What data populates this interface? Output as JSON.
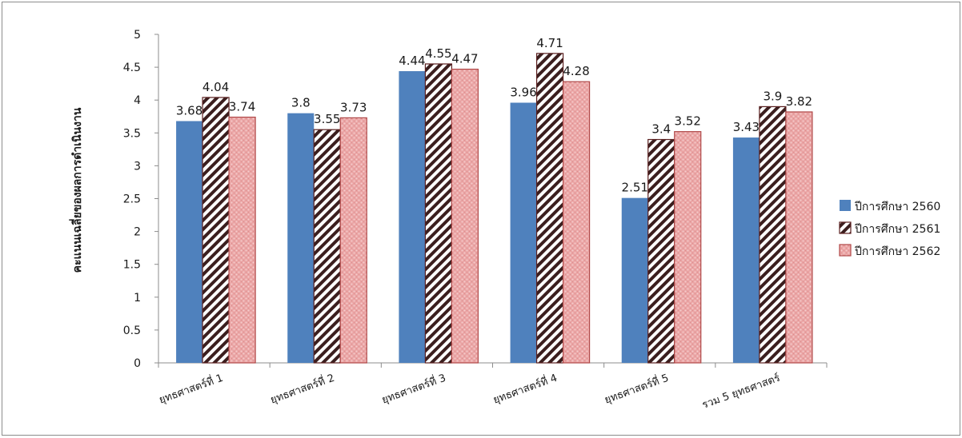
{
  "chart_data": {
    "type": "bar",
    "title": "",
    "xlabel": "",
    "ylabel": "คะแนนเฉลี่ยของผลการดำเนินงาน",
    "ylim": [
      0,
      5
    ],
    "yticks": [
      "0",
      "0.5",
      "1",
      "1.5",
      "2",
      "2.5",
      "3",
      "3.5",
      "4",
      "4.5",
      "5"
    ],
    "categories": [
      "ยุทธศาสตร์ที่ 1",
      "ยุทธศาสตร์ที่ 2",
      "ยุทธศาสตร์ที่ 3",
      "ยุทธศาสตร์ที่ 4",
      "ยุทธศาสตร์ที่ 5",
      "รวม 5 ยุทธศาสตร์"
    ],
    "series": [
      {
        "name": "ปีการศึกษา 2560",
        "values": [
          3.68,
          3.8,
          4.44,
          3.96,
          2.51,
          3.43
        ],
        "labels": [
          "3.68",
          "3.8",
          "4.44",
          "3.96",
          "2.51",
          "3.43"
        ],
        "color": "#4f81bd",
        "fill": "solid"
      },
      {
        "name": "ปีการศึกษา 2561",
        "values": [
          4.04,
          3.55,
          4.55,
          4.71,
          3.4,
          3.9
        ],
        "labels": [
          "4.04",
          "3.55",
          "4.55",
          "4.71",
          "3.4",
          "3.9"
        ],
        "color": "#3b1e1e",
        "fill": "diagonal-stripes"
      },
      {
        "name": "ปีการศึกษา 2562",
        "values": [
          3.74,
          3.73,
          4.47,
          4.28,
          3.52,
          3.82
        ],
        "labels": [
          "3.74",
          "3.73",
          "4.47",
          "4.28",
          "3.52",
          "3.82"
        ],
        "color": "#e8a5a5",
        "fill": "speckled"
      }
    ],
    "grid": false,
    "legend_position": "right"
  }
}
